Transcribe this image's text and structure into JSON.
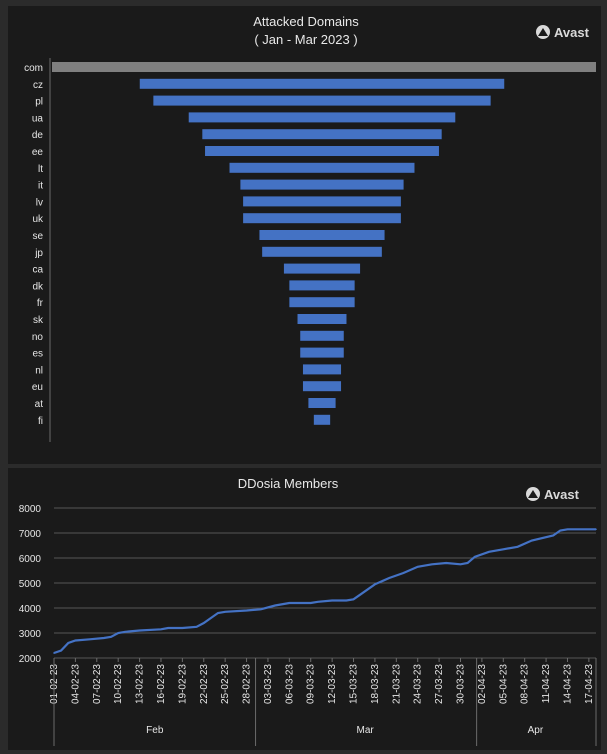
{
  "brand": {
    "name": "Avast"
  },
  "colors": {
    "bar": "#4472c4",
    "line": "#4472c4",
    "highlight_bar": "#808080",
    "background": "#1a1a1a",
    "text": "#e6e6e6",
    "grid": "#6b6b6b"
  },
  "icons": {
    "logo": "avast-logo-icon"
  },
  "chart_data": [
    {
      "type": "bar",
      "title": "Attacked Domains",
      "subtitle": "( Jan - Mar 2023 )",
      "orientation": "horizontal-centered",
      "categories": [
        "com",
        "cz",
        "pl",
        "ua",
        "de",
        "ee",
        "lt",
        "it",
        "lv",
        "uk",
        "se",
        "jp",
        "ca",
        "dk",
        "fr",
        "sk",
        "no",
        "es",
        "nl",
        "eu",
        "at",
        "fi"
      ],
      "values": [
        100,
        67,
        62,
        49,
        44,
        43,
        34,
        30,
        29,
        29,
        23,
        22,
        14,
        12,
        12,
        9,
        8,
        8,
        7,
        7,
        5,
        3
      ],
      "highlight": "com",
      "grid": false,
      "legend": "none"
    },
    {
      "type": "line",
      "title": "DDosia Members",
      "ylim": [
        2000,
        8000
      ],
      "yticks": [
        2000,
        3000,
        4000,
        5000,
        6000,
        7000,
        8000
      ],
      "grid": true,
      "legend": "none",
      "xtick_labels": [
        "01-02-23",
        "04-02-23",
        "07-02-23",
        "10-02-23",
        "13-02-23",
        "16-02-23",
        "19-02-23",
        "22-02-23",
        "25-02-23",
        "28-02-23",
        "03-03-23",
        "06-03-23",
        "09-03-23",
        "12-03-23",
        "15-03-23",
        "18-03-23",
        "21-03-23",
        "24-03-23",
        "27-03-23",
        "30-03-23",
        "02-04-23",
        "05-04-23",
        "08-04-23",
        "11-04-23",
        "14-04-23",
        "17-04-23"
      ],
      "month_groups": [
        {
          "label": "Feb",
          "start": "01-02-23",
          "end": "28-02-23"
        },
        {
          "label": "Mar",
          "start": "01-03-23",
          "end": "31-03-23"
        },
        {
          "label": "Apr",
          "start": "01-04-23",
          "end": "18-04-23"
        }
      ],
      "series": [
        {
          "x": [
            "01-02-23",
            "02-02-23",
            "03-02-23",
            "04-02-23",
            "06-02-23",
            "08-02-23",
            "09-02-23",
            "10-02-23",
            "11-02-23",
            "13-02-23",
            "16-02-23",
            "17-02-23",
            "19-02-23",
            "21-02-23",
            "22-02-23",
            "23-02-23",
            "24-02-23",
            "25-02-23",
            "28-02-23",
            "02-03-23",
            "04-03-23",
            "06-03-23",
            "09-03-23",
            "10-03-23",
            "12-03-23",
            "14-03-23",
            "15-03-23",
            "16-03-23",
            "18-03-23",
            "20-03-23",
            "22-03-23",
            "24-03-23",
            "26-03-23",
            "28-03-23",
            "30-03-23",
            "31-03-23",
            "01-04-23",
            "03-04-23",
            "05-04-23",
            "07-04-23",
            "09-04-23",
            "12-04-23",
            "13-04-23",
            "14-04-23",
            "18-04-23"
          ],
          "values": [
            2200,
            2300,
            2600,
            2700,
            2750,
            2800,
            2850,
            3000,
            3050,
            3100,
            3150,
            3200,
            3200,
            3250,
            3400,
            3600,
            3800,
            3850,
            3900,
            3950,
            4100,
            4200,
            4200,
            4250,
            4300,
            4300,
            4350,
            4550,
            4950,
            5200,
            5400,
            5650,
            5750,
            5800,
            5750,
            5800,
            6050,
            6250,
            6350,
            6450,
            6700,
            6900,
            7100,
            7150,
            7150
          ]
        }
      ]
    }
  ]
}
